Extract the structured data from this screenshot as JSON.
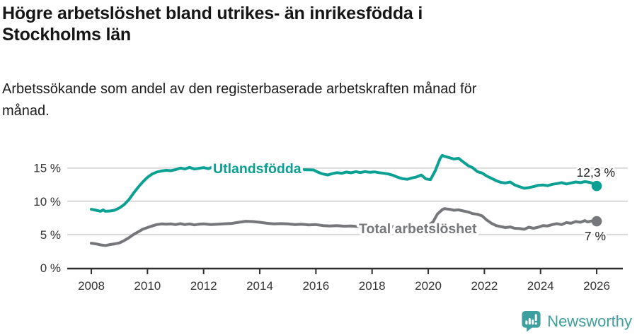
{
  "header": {
    "title_lines": [
      "Högre arbetslöshet bland utrikes- än inrikesfödda i",
      "Stockholms län"
    ],
    "subtitle_lines": [
      "Arbetssökande som andel av den registerbaserade arbetskraften månad för",
      "månad."
    ]
  },
  "footer": {
    "brand": "Newsworthy",
    "brand_color": "#3d9f9e",
    "logo_icon": "bar-chart-speech-bubble"
  },
  "colors": {
    "accent_teal": "#0ba094",
    "line_gray": "#76777b",
    "axis": "#2e2e2e",
    "axis_text": "#333333",
    "grid": "#d9d9d9",
    "value_label_text": "#222222"
  },
  "chart_data": {
    "type": "line",
    "title": "Högre arbetslöshet bland utrikes- än inrikesfödda i Stockholms län",
    "subtitle": "Arbetssökande som andel av den registerbaserade arbetskraften månad för månad.",
    "xlabel": "",
    "ylabel": "",
    "xlim": [
      2008,
      2026
    ],
    "ylim": [
      0,
      17.5
    ],
    "xticks": [
      2008,
      2010,
      2012,
      2014,
      2016,
      2018,
      2020,
      2022,
      2024,
      2026
    ],
    "yticks": [
      0,
      5,
      10,
      15
    ],
    "ytick_suffix": " %",
    "grid": "horizontal",
    "legend_position": "inline-labels",
    "series": [
      {
        "name": "Utlandsfödda",
        "color": "#0ba094",
        "end_value": 12.3,
        "end_label": "12,3 %",
        "points": [
          [
            2008,
            8.8
          ],
          [
            2008.17,
            8.65
          ],
          [
            2008.33,
            8.5
          ],
          [
            2008.42,
            8.7
          ],
          [
            2008.5,
            8.5
          ],
          [
            2008.67,
            8.55
          ],
          [
            2008.83,
            8.65
          ],
          [
            2009,
            9.0
          ],
          [
            2009.17,
            9.5
          ],
          [
            2009.33,
            10.2
          ],
          [
            2009.5,
            11.2
          ],
          [
            2009.67,
            12.1
          ],
          [
            2009.83,
            12.9
          ],
          [
            2010,
            13.6
          ],
          [
            2010.17,
            14.1
          ],
          [
            2010.33,
            14.4
          ],
          [
            2010.5,
            14.55
          ],
          [
            2010.67,
            14.65
          ],
          [
            2010.83,
            14.6
          ],
          [
            2011,
            14.75
          ],
          [
            2011.17,
            15.0
          ],
          [
            2011.33,
            14.85
          ],
          [
            2011.5,
            15.1
          ],
          [
            2011.67,
            14.85
          ],
          [
            2011.83,
            14.95
          ],
          [
            2012,
            15.05
          ],
          [
            2012.17,
            14.9
          ],
          [
            2012.33,
            15.15
          ],
          [
            2012.5,
            15.05
          ],
          [
            2012.75,
            15.1
          ],
          [
            2013,
            15.1
          ],
          [
            2013.25,
            15.15
          ],
          [
            2013.5,
            15.2
          ],
          [
            2013.75,
            15.1
          ],
          [
            2014,
            15.0
          ],
          [
            2014.25,
            14.9
          ],
          [
            2014.5,
            14.85
          ],
          [
            2014.75,
            14.8
          ],
          [
            2015,
            14.75
          ],
          [
            2015.25,
            14.7
          ],
          [
            2015.5,
            14.75
          ],
          [
            2015.75,
            14.72
          ],
          [
            2015.92,
            14.7
          ],
          [
            2016.08,
            14.35
          ],
          [
            2016.25,
            14.1
          ],
          [
            2016.42,
            13.95
          ],
          [
            2016.58,
            14.15
          ],
          [
            2016.75,
            14.3
          ],
          [
            2016.92,
            14.2
          ],
          [
            2017.08,
            14.4
          ],
          [
            2017.25,
            14.28
          ],
          [
            2017.42,
            14.45
          ],
          [
            2017.58,
            14.32
          ],
          [
            2017.75,
            14.45
          ],
          [
            2017.92,
            14.35
          ],
          [
            2018.08,
            14.42
          ],
          [
            2018.25,
            14.3
          ],
          [
            2018.42,
            14.2
          ],
          [
            2018.58,
            14.1
          ],
          [
            2018.75,
            13.9
          ],
          [
            2018.92,
            13.6
          ],
          [
            2019.08,
            13.4
          ],
          [
            2019.25,
            13.3
          ],
          [
            2019.42,
            13.5
          ],
          [
            2019.58,
            13.65
          ],
          [
            2019.75,
            13.95
          ],
          [
            2019.92,
            13.35
          ],
          [
            2020.08,
            13.25
          ],
          [
            2020.25,
            14.6
          ],
          [
            2020.42,
            16.4
          ],
          [
            2020.5,
            16.9
          ],
          [
            2020.58,
            16.75
          ],
          [
            2020.75,
            16.55
          ],
          [
            2020.92,
            16.35
          ],
          [
            2021.08,
            16.45
          ],
          [
            2021.25,
            15.9
          ],
          [
            2021.42,
            15.35
          ],
          [
            2021.58,
            15.05
          ],
          [
            2021.75,
            14.45
          ],
          [
            2021.92,
            14.25
          ],
          [
            2022.08,
            13.8
          ],
          [
            2022.25,
            13.45
          ],
          [
            2022.42,
            13.1
          ],
          [
            2022.58,
            12.85
          ],
          [
            2022.75,
            12.75
          ],
          [
            2022.92,
            12.9
          ],
          [
            2023.08,
            12.45
          ],
          [
            2023.25,
            12.2
          ],
          [
            2023.42,
            11.95
          ],
          [
            2023.58,
            12.05
          ],
          [
            2023.75,
            12.2
          ],
          [
            2023.92,
            12.4
          ],
          [
            2024.08,
            12.45
          ],
          [
            2024.25,
            12.35
          ],
          [
            2024.42,
            12.55
          ],
          [
            2024.58,
            12.65
          ],
          [
            2024.75,
            12.8
          ],
          [
            2024.92,
            12.6
          ],
          [
            2025.08,
            12.75
          ],
          [
            2025.25,
            12.9
          ],
          [
            2025.42,
            12.8
          ],
          [
            2025.58,
            12.95
          ],
          [
            2025.75,
            12.85
          ],
          [
            2025.92,
            12.6
          ],
          [
            2026,
            12.3
          ]
        ]
      },
      {
        "name": "Total arbetslöshet",
        "color": "#76777b",
        "end_value": 7.0,
        "end_label": "7 %",
        "points": [
          [
            2008,
            3.7
          ],
          [
            2008.17,
            3.6
          ],
          [
            2008.33,
            3.45
          ],
          [
            2008.5,
            3.35
          ],
          [
            2008.67,
            3.5
          ],
          [
            2008.83,
            3.6
          ],
          [
            2009,
            3.75
          ],
          [
            2009.17,
            4.1
          ],
          [
            2009.33,
            4.5
          ],
          [
            2009.5,
            5.0
          ],
          [
            2009.67,
            5.4
          ],
          [
            2009.83,
            5.8
          ],
          [
            2010,
            6.05
          ],
          [
            2010.17,
            6.3
          ],
          [
            2010.33,
            6.5
          ],
          [
            2010.5,
            6.6
          ],
          [
            2010.67,
            6.55
          ],
          [
            2010.83,
            6.6
          ],
          [
            2011,
            6.5
          ],
          [
            2011.17,
            6.65
          ],
          [
            2011.33,
            6.5
          ],
          [
            2011.5,
            6.6
          ],
          [
            2011.67,
            6.45
          ],
          [
            2011.83,
            6.55
          ],
          [
            2012,
            6.6
          ],
          [
            2012.25,
            6.5
          ],
          [
            2012.5,
            6.55
          ],
          [
            2012.75,
            6.62
          ],
          [
            2013,
            6.68
          ],
          [
            2013.25,
            6.85
          ],
          [
            2013.5,
            7.0
          ],
          [
            2013.75,
            6.95
          ],
          [
            2014,
            6.85
          ],
          [
            2014.25,
            6.7
          ],
          [
            2014.5,
            6.6
          ],
          [
            2014.75,
            6.65
          ],
          [
            2015,
            6.6
          ],
          [
            2015.25,
            6.5
          ],
          [
            2015.5,
            6.55
          ],
          [
            2015.75,
            6.45
          ],
          [
            2016,
            6.5
          ],
          [
            2016.25,
            6.35
          ],
          [
            2016.5,
            6.3
          ],
          [
            2016.75,
            6.35
          ],
          [
            2017,
            6.25
          ],
          [
            2017.25,
            6.3
          ],
          [
            2017.5,
            6.2
          ],
          [
            2017.75,
            6.28
          ],
          [
            2018,
            6.2
          ],
          [
            2018.25,
            6.25
          ],
          [
            2018.5,
            6.15
          ],
          [
            2018.75,
            6.2
          ],
          [
            2019,
            6.1
          ],
          [
            2019.25,
            6.15
          ],
          [
            2019.5,
            6.2
          ],
          [
            2019.75,
            6.25
          ],
          [
            2020,
            6.35
          ],
          [
            2020.17,
            6.9
          ],
          [
            2020.33,
            8.1
          ],
          [
            2020.5,
            8.75
          ],
          [
            2020.58,
            8.9
          ],
          [
            2020.75,
            8.8
          ],
          [
            2020.92,
            8.65
          ],
          [
            2021.08,
            8.72
          ],
          [
            2021.25,
            8.55
          ],
          [
            2021.42,
            8.4
          ],
          [
            2021.58,
            8.15
          ],
          [
            2021.75,
            8.05
          ],
          [
            2021.92,
            7.8
          ],
          [
            2022.08,
            7.2
          ],
          [
            2022.25,
            6.7
          ],
          [
            2022.42,
            6.35
          ],
          [
            2022.58,
            6.2
          ],
          [
            2022.75,
            6.05
          ],
          [
            2022.92,
            6.15
          ],
          [
            2023.08,
            5.95
          ],
          [
            2023.25,
            5.9
          ],
          [
            2023.42,
            5.8
          ],
          [
            2023.58,
            6.1
          ],
          [
            2023.75,
            5.95
          ],
          [
            2023.92,
            6.1
          ],
          [
            2024.08,
            6.35
          ],
          [
            2024.25,
            6.3
          ],
          [
            2024.42,
            6.5
          ],
          [
            2024.58,
            6.65
          ],
          [
            2024.75,
            6.5
          ],
          [
            2024.92,
            6.8
          ],
          [
            2025.08,
            6.7
          ],
          [
            2025.25,
            6.95
          ],
          [
            2025.42,
            6.85
          ],
          [
            2025.58,
            7.1
          ],
          [
            2025.67,
            6.9
          ],
          [
            2025.83,
            7.05
          ],
          [
            2026,
            7.0
          ]
        ]
      }
    ]
  }
}
